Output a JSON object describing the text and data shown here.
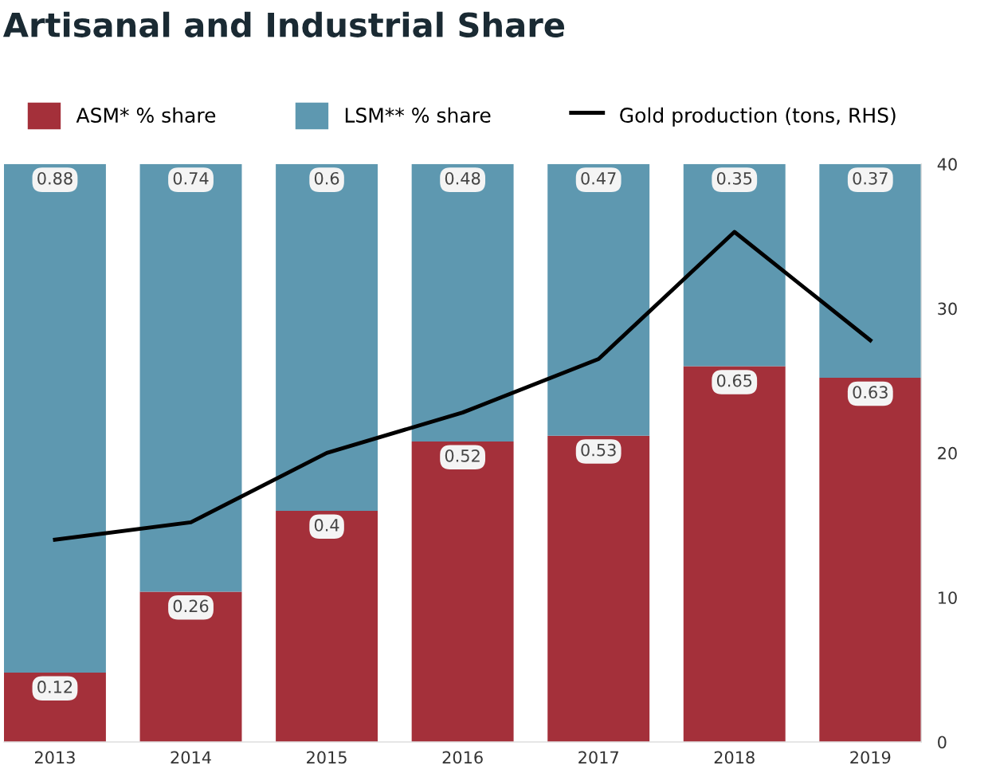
{
  "chart_data": {
    "type": "bar",
    "title": "Artisanal and Industrial Share",
    "categories": [
      "2013",
      "2014",
      "2015",
      "2016",
      "2017",
      "2018",
      "2019"
    ],
    "stacked": true,
    "ylim": [
      0,
      1
    ],
    "series": [
      {
        "name": "ASM* % share",
        "color": "#a4303a",
        "values": [
          0.12,
          0.26,
          0.4,
          0.52,
          0.53,
          0.65,
          0.63
        ],
        "value_labels": [
          "0.12",
          "0.26",
          "0.4",
          "0.52",
          "0.53",
          "0.65",
          "0.63"
        ]
      },
      {
        "name": "LSM** % share",
        "color": "#5e98b0",
        "values": [
          0.88,
          0.74,
          0.6,
          0.48,
          0.47,
          0.35,
          0.37
        ],
        "value_labels": [
          "0.88",
          "0.74",
          "0.6",
          "0.48",
          "0.47",
          "0.35",
          "0.37"
        ]
      },
      {
        "name": "Gold production (tons, RHS)",
        "type": "line",
        "axis": "y2",
        "color": "#000000",
        "values": [
          14.0,
          15.2,
          20.0,
          22.8,
          26.5,
          35.3,
          27.8
        ]
      }
    ],
    "y2lim": [
      0,
      40
    ],
    "y2ticks": [
      0,
      10,
      20,
      30,
      40
    ],
    "grid": false,
    "legend": "top",
    "marker": "none",
    "line_style": "solid"
  }
}
